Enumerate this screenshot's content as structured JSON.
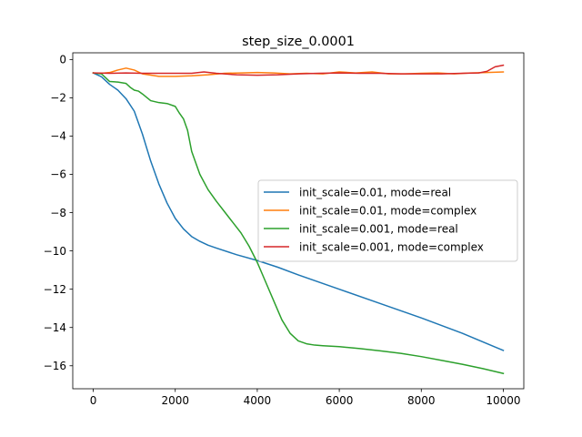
{
  "chart_data": {
    "type": "line",
    "title": "step_size_0.0001",
    "xlabel": "",
    "ylabel": "",
    "xlim": [
      -500,
      10500
    ],
    "ylim": [
      -17.2,
      0.35
    ],
    "x_ticks": [
      0,
      2000,
      4000,
      6000,
      8000,
      10000
    ],
    "y_ticks": [
      0,
      -2,
      -4,
      -6,
      -8,
      -10,
      -12,
      -14,
      -16
    ],
    "grid": false,
    "legend_position": "center-right",
    "series": [
      {
        "name": "init_scale=0.01, mode=real",
        "color": "#1f77b4",
        "x": [
          0,
          200,
          400,
          600,
          800,
          1000,
          1200,
          1400,
          1600,
          1800,
          2000,
          2200,
          2400,
          2600,
          2800,
          3000,
          3500,
          4000,
          4500,
          5000,
          6000,
          7000,
          8000,
          9000,
          10000
        ],
        "y": [
          -0.7,
          -0.9,
          -1.3,
          -1.6,
          -2.05,
          -2.7,
          -3.9,
          -5.3,
          -6.5,
          -7.5,
          -8.3,
          -8.85,
          -9.25,
          -9.5,
          -9.7,
          -9.85,
          -10.2,
          -10.5,
          -10.85,
          -11.25,
          -12.0,
          -12.75,
          -13.5,
          -14.3,
          -15.2
        ]
      },
      {
        "name": "init_scale=0.01, mode=complex",
        "color": "#ff7f0e",
        "x": [
          0,
          200,
          400,
          600,
          800,
          1000,
          1200,
          1600,
          2000,
          2400,
          2800,
          3200,
          3600,
          4000,
          4400,
          4800,
          5200,
          5600,
          6000,
          6400,
          6800,
          7200,
          7600,
          8000,
          8400,
          8800,
          9200,
          9600,
          10000
        ],
        "y": [
          -0.7,
          -0.72,
          -0.68,
          -0.55,
          -0.45,
          -0.55,
          -0.75,
          -0.88,
          -0.88,
          -0.85,
          -0.8,
          -0.72,
          -0.7,
          -0.68,
          -0.7,
          -0.75,
          -0.72,
          -0.75,
          -0.65,
          -0.7,
          -0.65,
          -0.75,
          -0.75,
          -0.72,
          -0.7,
          -0.75,
          -0.7,
          -0.68,
          -0.65
        ]
      },
      {
        "name": "init_scale=0.001, mode=real",
        "color": "#2ca02c",
        "x": [
          0,
          200,
          300,
          400,
          600,
          800,
          900,
          1000,
          1100,
          1200,
          1400,
          1600,
          1800,
          2000,
          2100,
          2200,
          2300,
          2400,
          2600,
          2800,
          3000,
          3200,
          3400,
          3600,
          3800,
          4000,
          4200,
          4400,
          4600,
          4800,
          5000,
          5200,
          5400,
          5600,
          6000,
          6500,
          7000,
          7500,
          8000,
          8500,
          9000,
          9500,
          10000
        ],
        "y": [
          -0.7,
          -0.75,
          -0.95,
          -1.15,
          -1.18,
          -1.25,
          -1.45,
          -1.6,
          -1.65,
          -1.8,
          -2.15,
          -2.25,
          -2.3,
          -2.45,
          -2.8,
          -3.1,
          -3.7,
          -4.8,
          -6.0,
          -6.8,
          -7.4,
          -7.95,
          -8.5,
          -9.05,
          -9.75,
          -10.6,
          -11.6,
          -12.6,
          -13.6,
          -14.3,
          -14.7,
          -14.85,
          -14.92,
          -14.95,
          -15.0,
          -15.1,
          -15.22,
          -15.35,
          -15.52,
          -15.72,
          -15.92,
          -16.15,
          -16.4
        ]
      },
      {
        "name": "init_scale=0.001, mode=complex",
        "color": "#d62728",
        "x": [
          0,
          400,
          800,
          1200,
          1600,
          2000,
          2400,
          2700,
          3000,
          3500,
          4000,
          4500,
          5000,
          5500,
          6000,
          6500,
          7000,
          7500,
          8000,
          8500,
          9000,
          9400,
          9600,
          9800,
          10000
        ],
        "y": [
          -0.7,
          -0.72,
          -0.7,
          -0.72,
          -0.72,
          -0.72,
          -0.72,
          -0.65,
          -0.72,
          -0.8,
          -0.82,
          -0.8,
          -0.75,
          -0.72,
          -0.7,
          -0.72,
          -0.72,
          -0.75,
          -0.75,
          -0.75,
          -0.72,
          -0.7,
          -0.62,
          -0.38,
          -0.3
        ]
      }
    ]
  }
}
